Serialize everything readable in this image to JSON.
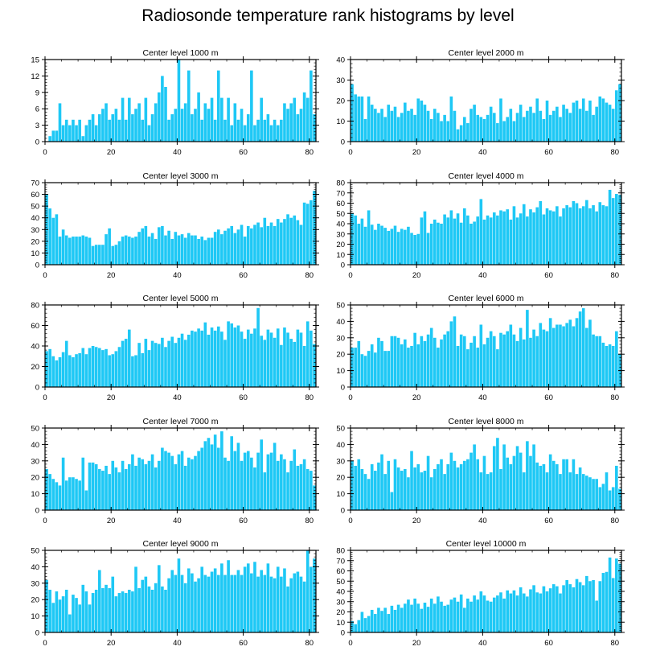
{
  "page_title": "Radiosonde temperature rank histograms by level",
  "chart_data": [
    {
      "type": "bar",
      "title": "Center level 1000 m",
      "ylim": [
        0,
        15
      ],
      "yticks": [
        0,
        3,
        6,
        9,
        12,
        15
      ],
      "xlim": [
        0,
        82
      ],
      "xticks": [
        0,
        20,
        40,
        60,
        80
      ],
      "bar_color": "#1ec8f5",
      "values": [
        0,
        1,
        2,
        2,
        7,
        3,
        4,
        3,
        4,
        3,
        4,
        1,
        3,
        4,
        5,
        3,
        5,
        6,
        7,
        4,
        5,
        6,
        4,
        8,
        4,
        8,
        5,
        6,
        7,
        4,
        8,
        3,
        5,
        7,
        9,
        12,
        10,
        4,
        5,
        6,
        15,
        6,
        7,
        13,
        5,
        6,
        9,
        4,
        7,
        6,
        8,
        4,
        13,
        8,
        4,
        8,
        3,
        7,
        4,
        6,
        3,
        5,
        13,
        3,
        4,
        8,
        4,
        5,
        3,
        4,
        3,
        4,
        7,
        6,
        7,
        8,
        5,
        6,
        9,
        8,
        13,
        5
      ]
    },
    {
      "type": "bar",
      "title": "Center level 2000 m",
      "ylim": [
        0,
        40
      ],
      "yticks": [
        0,
        10,
        20,
        30,
        40
      ],
      "xlim": [
        0,
        82
      ],
      "xticks": [
        0,
        20,
        40,
        60,
        80
      ],
      "bar_color": "#1ec8f5",
      "values": [
        28,
        23,
        22,
        22,
        11,
        22,
        18,
        16,
        14,
        16,
        12,
        18,
        15,
        17,
        12,
        14,
        19,
        15,
        16,
        13,
        21,
        20,
        18,
        15,
        11,
        16,
        14,
        10,
        13,
        10,
        22,
        15,
        6,
        8,
        12,
        9,
        16,
        18,
        13,
        12,
        11,
        13,
        17,
        14,
        9,
        21,
        10,
        12,
        16,
        10,
        14,
        18,
        12,
        15,
        17,
        14,
        21,
        15,
        11,
        20,
        13,
        15,
        17,
        12,
        18,
        16,
        14,
        19,
        20,
        16,
        21,
        15,
        20,
        13,
        17,
        22,
        21,
        19,
        18,
        16,
        25,
        28
      ]
    },
    {
      "type": "bar",
      "title": "Center level 3000 m",
      "ylim": [
        0,
        70
      ],
      "yticks": [
        0,
        10,
        20,
        30,
        40,
        50,
        60,
        70
      ],
      "xlim": [
        0,
        82
      ],
      "xticks": [
        0,
        20,
        40,
        60,
        80
      ],
      "bar_color": "#1ec8f5",
      "values": [
        60,
        48,
        40,
        43,
        24,
        30,
        25,
        23,
        24,
        24,
        24,
        25,
        24,
        23,
        16,
        17,
        17,
        17,
        26,
        31,
        16,
        17,
        20,
        24,
        25,
        24,
        23,
        24,
        28,
        31,
        33,
        24,
        27,
        22,
        32,
        33,
        25,
        29,
        22,
        28,
        25,
        26,
        23,
        27,
        25,
        25,
        22,
        24,
        21,
        23,
        23,
        28,
        30,
        26,
        29,
        31,
        33,
        27,
        30,
        34,
        24,
        33,
        31,
        34,
        36,
        32,
        40,
        33,
        36,
        33,
        39,
        36,
        39,
        43,
        40,
        42,
        38,
        34,
        53,
        52,
        55,
        63
      ]
    },
    {
      "type": "bar",
      "title": "Center level 4000 m",
      "ylim": [
        0,
        80
      ],
      "yticks": [
        0,
        10,
        20,
        30,
        40,
        50,
        60,
        70,
        80
      ],
      "xlim": [
        0,
        82
      ],
      "xticks": [
        0,
        20,
        40,
        60,
        80
      ],
      "bar_color": "#1ec8f5",
      "values": [
        50,
        48,
        40,
        45,
        37,
        53,
        39,
        34,
        40,
        38,
        36,
        33,
        35,
        38,
        32,
        35,
        34,
        37,
        31,
        29,
        30,
        46,
        52,
        31,
        40,
        44,
        41,
        40,
        49,
        46,
        53,
        45,
        50,
        41,
        55,
        48,
        40,
        42,
        47,
        64,
        44,
        48,
        46,
        51,
        48,
        53,
        52,
        54,
        44,
        57,
        46,
        50,
        59,
        47,
        54,
        51,
        56,
        62,
        49,
        55,
        53,
        52,
        57,
        47,
        55,
        58,
        56,
        62,
        60,
        55,
        57,
        63,
        55,
        58,
        52,
        61,
        58,
        57,
        73,
        65,
        69,
        68
      ]
    },
    {
      "type": "bar",
      "title": "Center level 5000 m",
      "ylim": [
        0,
        80
      ],
      "yticks": [
        0,
        20,
        40,
        60,
        80
      ],
      "xlim": [
        0,
        82
      ],
      "xticks": [
        0,
        20,
        40,
        60,
        80
      ],
      "bar_color": "#1ec8f5",
      "values": [
        35,
        37,
        30,
        26,
        29,
        34,
        45,
        31,
        29,
        32,
        33,
        38,
        32,
        38,
        40,
        39,
        38,
        36,
        37,
        31,
        32,
        35,
        39,
        45,
        47,
        56,
        30,
        31,
        43,
        33,
        47,
        36,
        45,
        43,
        42,
        48,
        39,
        45,
        49,
        43,
        48,
        52,
        46,
        51,
        55,
        54,
        57,
        55,
        63,
        51,
        58,
        55,
        59,
        54,
        46,
        64,
        62,
        58,
        60,
        54,
        47,
        56,
        52,
        57,
        77,
        50,
        46,
        56,
        53,
        48,
        57,
        41,
        58,
        53,
        47,
        44,
        56,
        53,
        40,
        64,
        55,
        42
      ]
    },
    {
      "type": "bar",
      "title": "Center level 6000 m",
      "ylim": [
        0,
        50
      ],
      "yticks": [
        0,
        10,
        20,
        30,
        40,
        50
      ],
      "xlim": [
        0,
        82
      ],
      "xticks": [
        0,
        20,
        40,
        60,
        80
      ],
      "bar_color": "#1ec8f5",
      "values": [
        24,
        24,
        28,
        20,
        19,
        22,
        26,
        21,
        30,
        28,
        22,
        22,
        31,
        31,
        30,
        26,
        29,
        24,
        25,
        33,
        26,
        31,
        28,
        32,
        36,
        30,
        24,
        29,
        32,
        34,
        40,
        43,
        25,
        32,
        31,
        23,
        27,
        31,
        24,
        38,
        26,
        30,
        34,
        31,
        23,
        33,
        32,
        34,
        38,
        32,
        28,
        36,
        29,
        47,
        30,
        35,
        31,
        39,
        35,
        34,
        42,
        36,
        38,
        38,
        37,
        39,
        41,
        37,
        42,
        46,
        48,
        36,
        41,
        32,
        31,
        31,
        27,
        25,
        26,
        25,
        34,
        20
      ]
    },
    {
      "type": "bar",
      "title": "Center level 7000 m",
      "ylim": [
        0,
        50
      ],
      "yticks": [
        0,
        10,
        20,
        30,
        40,
        50
      ],
      "xlim": [
        0,
        82
      ],
      "xticks": [
        0,
        20,
        40,
        60,
        80
      ],
      "bar_color": "#1ec8f5",
      "values": [
        25,
        22,
        19,
        17,
        15,
        32,
        18,
        20,
        20,
        19,
        18,
        32,
        12,
        29,
        29,
        28,
        25,
        24,
        27,
        22,
        30,
        26,
        23,
        30,
        25,
        28,
        34,
        27,
        32,
        31,
        28,
        30,
        34,
        26,
        30,
        38,
        36,
        35,
        33,
        28,
        34,
        36,
        27,
        32,
        31,
        33,
        36,
        38,
        42,
        44,
        40,
        46,
        38,
        48,
        32,
        30,
        45,
        36,
        41,
        30,
        35,
        36,
        32,
        26,
        35,
        43,
        23,
        34,
        35,
        41,
        30,
        34,
        31,
        23,
        30,
        37,
        27,
        28,
        31,
        25,
        24,
        15
      ]
    },
    {
      "type": "bar",
      "title": "Center level 8000 m",
      "ylim": [
        0,
        50
      ],
      "yticks": [
        0,
        10,
        20,
        30,
        40,
        50
      ],
      "xlim": [
        0,
        82
      ],
      "xticks": [
        0,
        20,
        40,
        60,
        80
      ],
      "bar_color": "#1ec8f5",
      "values": [
        30,
        27,
        31,
        25,
        22,
        19,
        28,
        24,
        29,
        34,
        22,
        30,
        11,
        31,
        26,
        24,
        25,
        20,
        36,
        26,
        28,
        23,
        24,
        33,
        20,
        25,
        28,
        31,
        22,
        28,
        35,
        30,
        26,
        28,
        30,
        31,
        35,
        40,
        31,
        23,
        33,
        22,
        23,
        39,
        44,
        25,
        40,
        32,
        28,
        33,
        39,
        35,
        23,
        42,
        33,
        40,
        29,
        27,
        28,
        23,
        34,
        30,
        28,
        22,
        31,
        31,
        23,
        31,
        22,
        26,
        22,
        21,
        20,
        19,
        19,
        14,
        16,
        23,
        12,
        14,
        27,
        13
      ]
    },
    {
      "type": "bar",
      "title": "Center level 9000 m",
      "ylim": [
        0,
        50
      ],
      "yticks": [
        0,
        10,
        20,
        30,
        40,
        50
      ],
      "xlim": [
        0,
        82
      ],
      "xticks": [
        0,
        20,
        40,
        60,
        80
      ],
      "bar_color": "#1ec8f5",
      "values": [
        32,
        26,
        18,
        25,
        20,
        22,
        26,
        11,
        23,
        21,
        17,
        29,
        25,
        17,
        24,
        26,
        38,
        27,
        29,
        27,
        34,
        22,
        24,
        25,
        24,
        26,
        25,
        40,
        27,
        32,
        34,
        28,
        26,
        30,
        41,
        28,
        26,
        33,
        38,
        35,
        45,
        35,
        30,
        39,
        36,
        31,
        33,
        40,
        35,
        34,
        37,
        39,
        35,
        42,
        35,
        44,
        35,
        35,
        38,
        35,
        40,
        42,
        36,
        43,
        34,
        38,
        35,
        42,
        34,
        33,
        40,
        34,
        39,
        28,
        33,
        36,
        37,
        34,
        31,
        50,
        40,
        45
      ]
    },
    {
      "type": "bar",
      "title": "Center level 10000 m",
      "ylim": [
        0,
        80
      ],
      "yticks": [
        0,
        10,
        20,
        30,
        40,
        50,
        60,
        70,
        80
      ],
      "xlim": [
        0,
        82
      ],
      "xticks": [
        0,
        20,
        40,
        60,
        80
      ],
      "bar_color": "#1ec8f5",
      "values": [
        11,
        8,
        12,
        20,
        14,
        16,
        22,
        18,
        24,
        21,
        24,
        18,
        26,
        22,
        27,
        24,
        28,
        32,
        27,
        33,
        28,
        23,
        29,
        25,
        33,
        28,
        35,
        30,
        26,
        27,
        32,
        34,
        30,
        37,
        24,
        33,
        30,
        36,
        32,
        40,
        36,
        31,
        30,
        34,
        36,
        39,
        33,
        41,
        38,
        41,
        36,
        44,
        38,
        35,
        42,
        46,
        39,
        38,
        45,
        40,
        43,
        47,
        45,
        38,
        46,
        51,
        47,
        44,
        52,
        49,
        46,
        55,
        50,
        51,
        31,
        50,
        58,
        59,
        73,
        53,
        72,
        67
      ]
    }
  ]
}
